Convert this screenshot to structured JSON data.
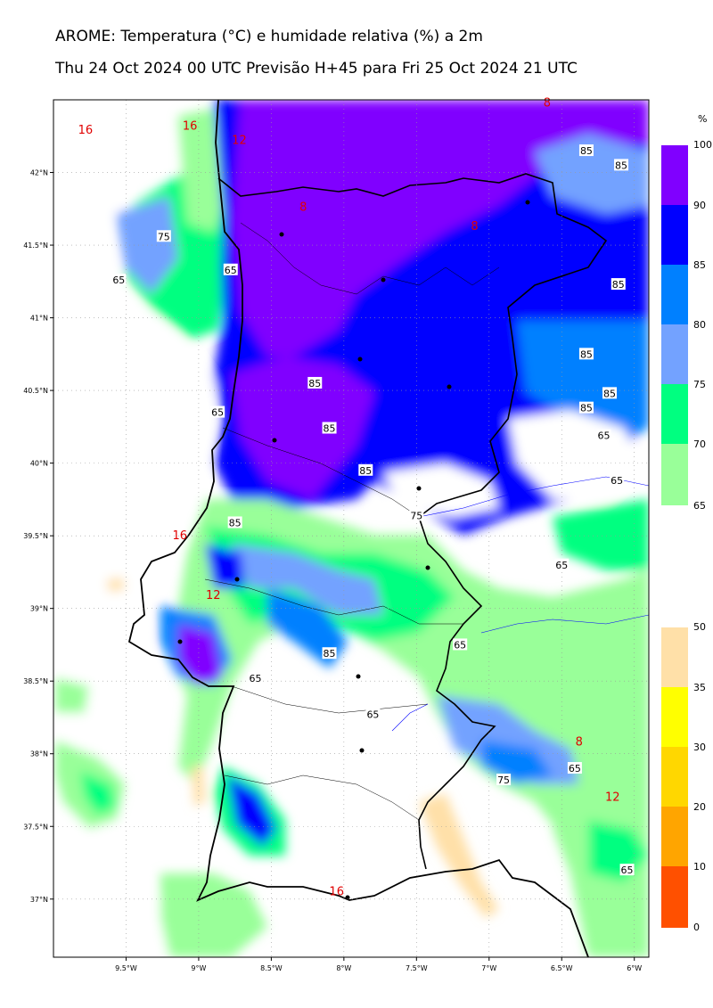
{
  "header": {
    "title": "AROME: Temperatura (°C) e humidade relativa (%) a 2m",
    "subtitle": "Thu 24 Oct 2024 00 UTC Previsão H+45 para Fri 25 Oct 2024 21 UTC"
  },
  "map": {
    "lon_ticks": [
      "9.5°W",
      "9°W",
      "8.5°W",
      "8°W",
      "7.5°W",
      "7°W",
      "6.5°W",
      "6°W"
    ],
    "lat_ticks": [
      "42°N",
      "41.5°N",
      "41°N",
      "40.5°N",
      "40°N",
      "39.5°N",
      "39°N",
      "38.5°N",
      "38°N",
      "37.5°N",
      "37°N"
    ],
    "humidity_contour_labels": [
      {
        "text": "85",
        "lon": -6.33,
        "lat": 42.15
      },
      {
        "text": "85",
        "lon": -6.09,
        "lat": 42.05
      },
      {
        "text": "85",
        "lon": -6.11,
        "lat": 41.23
      },
      {
        "text": "85",
        "lon": -6.33,
        "lat": 40.75
      },
      {
        "text": "85",
        "lon": -6.17,
        "lat": 40.48
      },
      {
        "text": "85",
        "lon": -6.33,
        "lat": 40.38
      },
      {
        "text": "85",
        "lon": -8.2,
        "lat": 40.55
      },
      {
        "text": "85",
        "lon": -8.1,
        "lat": 40.24
      },
      {
        "text": "85",
        "lon": -7.85,
        "lat": 39.95
      },
      {
        "text": "85",
        "lon": -8.75,
        "lat": 39.59
      },
      {
        "text": "85",
        "lon": -8.1,
        "lat": 38.69
      },
      {
        "text": "75",
        "lon": -9.24,
        "lat": 41.56
      },
      {
        "text": "75",
        "lon": -7.5,
        "lat": 39.64
      },
      {
        "text": "75",
        "lon": -6.9,
        "lat": 37.82
      },
      {
        "text": "65",
        "lon": -9.55,
        "lat": 41.26
      },
      {
        "text": "65",
        "lon": -8.78,
        "lat": 41.33
      },
      {
        "text": "65",
        "lon": -8.87,
        "lat": 40.35
      },
      {
        "text": "65",
        "lon": -6.21,
        "lat": 40.19
      },
      {
        "text": "65",
        "lon": -6.12,
        "lat": 39.88
      },
      {
        "text": "65",
        "lon": -6.5,
        "lat": 39.3
      },
      {
        "text": "65",
        "lon": -7.2,
        "lat": 38.75
      },
      {
        "text": "65",
        "lon": -8.61,
        "lat": 38.52
      },
      {
        "text": "65",
        "lon": -7.8,
        "lat": 38.27
      },
      {
        "text": "65",
        "lon": -6.41,
        "lat": 37.9
      },
      {
        "text": "65",
        "lon": -6.05,
        "lat": 37.2
      }
    ],
    "temperature_contour_labels": [
      {
        "text": "16",
        "lon": -9.78,
        "lat": 42.29
      },
      {
        "text": "16",
        "lon": -9.06,
        "lat": 42.32
      },
      {
        "text": "12",
        "lon": -8.72,
        "lat": 42.22
      },
      {
        "text": "8",
        "lon": -8.28,
        "lat": 41.76
      },
      {
        "text": "8",
        "lon": -7.1,
        "lat": 41.63
      },
      {
        "text": "8",
        "lon": -6.6,
        "lat": 42.48
      },
      {
        "text": "16",
        "lon": -9.13,
        "lat": 39.5
      },
      {
        "text": "12",
        "lon": -8.9,
        "lat": 39.09
      },
      {
        "text": "8",
        "lon": -6.38,
        "lat": 38.08
      },
      {
        "text": "12",
        "lon": -6.15,
        "lat": 37.7
      },
      {
        "text": "16",
        "lon": -8.05,
        "lat": 37.05
      }
    ]
  },
  "colorbar_humidity": {
    "unit": "%",
    "levels": [
      "100",
      "90",
      "85",
      "80",
      "75",
      "70",
      "65"
    ],
    "colors": [
      "#8000ff",
      "#0000ff",
      "#0080ff",
      "#73a2ff",
      "#00ff80",
      "#99ff99"
    ]
  },
  "colorbar_temperature": {
    "levels": [
      "50",
      "35",
      "30",
      "20",
      "10",
      "0"
    ],
    "colors": [
      "#ffe0a8",
      "#ffff00",
      "#ffd700",
      "#ffa500",
      "#ff8000",
      "#ff5000"
    ]
  }
}
